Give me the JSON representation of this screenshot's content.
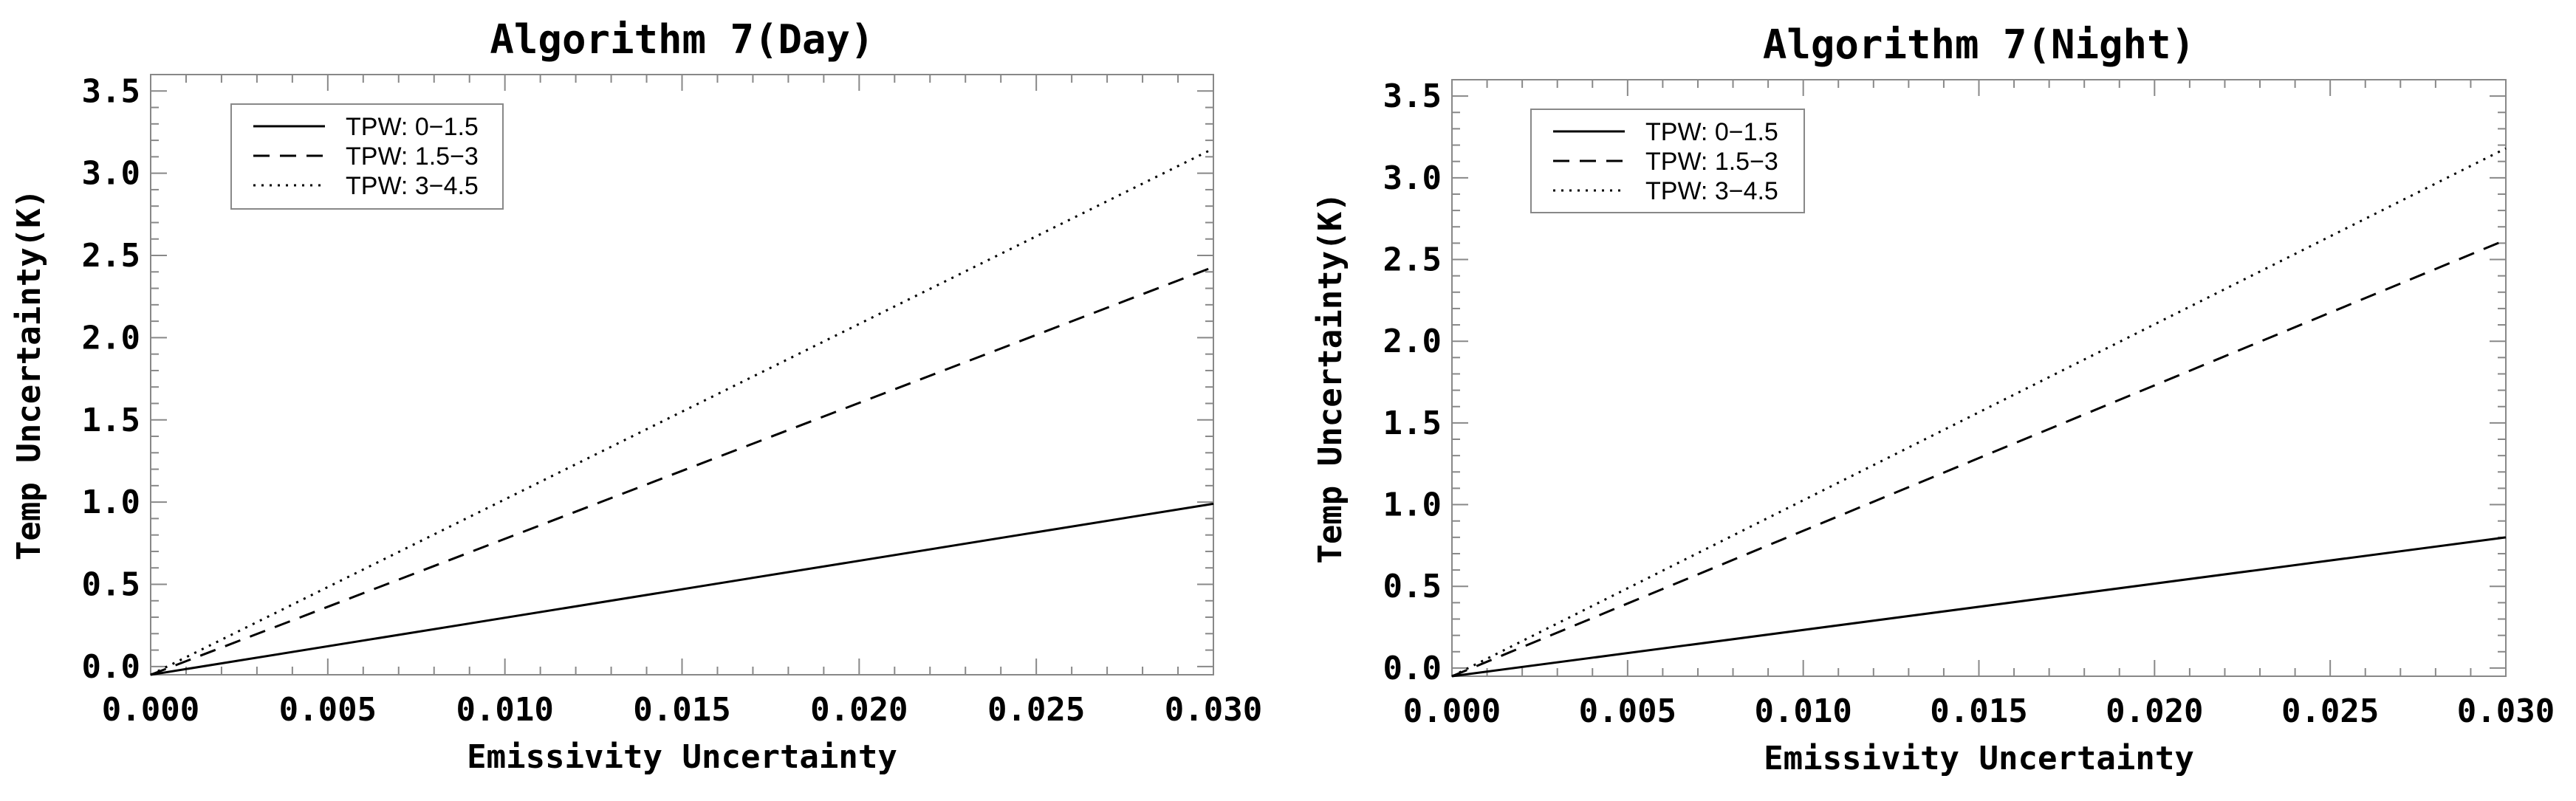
{
  "chart_data": [
    {
      "type": "line",
      "title": "Algorithm 7(Day)",
      "xlabel": "Emissivity Uncertainty",
      "ylabel": "Temp Uncertainty(K)",
      "xlim": [
        0.0,
        0.03
      ],
      "ylim": [
        -0.05,
        3.6
      ],
      "xticks": [
        "0.000",
        "0.005",
        "0.010",
        "0.015",
        "0.020",
        "0.025",
        "0.030"
      ],
      "yticks": [
        "0.0",
        "0.5",
        "1.0",
        "1.5",
        "2.0",
        "2.5",
        "3.0",
        "3.5"
      ],
      "legend_position": "top-left",
      "series": [
        {
          "name": "TPW: 0−1.5",
          "style": "solid",
          "x": [
            0.0,
            0.03
          ],
          "y": [
            -0.05,
            0.99
          ]
        },
        {
          "name": "TPW: 1.5−3",
          "style": "dashed",
          "x": [
            0.0,
            0.03
          ],
          "y": [
            -0.05,
            2.43
          ]
        },
        {
          "name": "TPW: 3−4.5",
          "style": "dotted",
          "x": [
            0.0,
            0.03
          ],
          "y": [
            -0.05,
            3.15
          ]
        }
      ]
    },
    {
      "type": "line",
      "title": "Algorithm 7(Night)",
      "xlabel": "Emissivity Uncertainty",
      "ylabel": "Temp Uncertainty(K)",
      "xlim": [
        0.0,
        0.03
      ],
      "ylim": [
        -0.05,
        3.6
      ],
      "xticks": [
        "0.000",
        "0.005",
        "0.010",
        "0.015",
        "0.020",
        "0.025",
        "0.030"
      ],
      "yticks": [
        "0.0",
        "0.5",
        "1.0",
        "1.5",
        "2.0",
        "2.5",
        "3.0",
        "3.5"
      ],
      "legend_position": "top-left",
      "series": [
        {
          "name": "TPW: 0−1.5",
          "style": "solid",
          "x": [
            0.0,
            0.03
          ],
          "y": [
            -0.05,
            0.8
          ]
        },
        {
          "name": "TPW: 1.5−3",
          "style": "dashed",
          "x": [
            0.0,
            0.03
          ],
          "y": [
            -0.05,
            2.62
          ]
        },
        {
          "name": "TPW: 3−4.5",
          "style": "dotted",
          "x": [
            0.0,
            0.03
          ],
          "y": [
            -0.05,
            3.18
          ]
        }
      ]
    }
  ]
}
